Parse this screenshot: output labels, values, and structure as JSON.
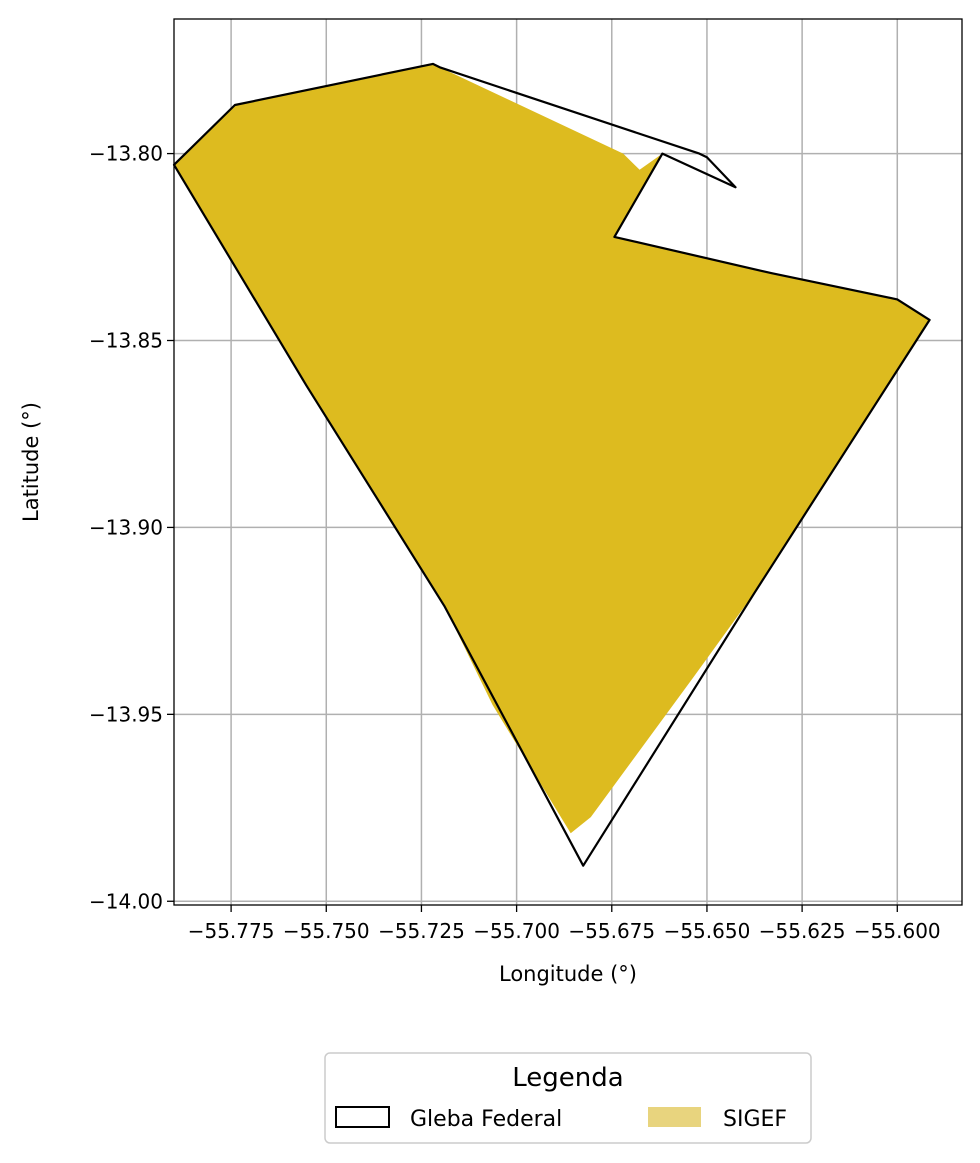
{
  "chart_data": {
    "type": "map",
    "xlabel": "Longitude (°)",
    "ylabel": "Latitude (°)",
    "xlim": [
      -55.79,
      -55.583
    ],
    "ylim": [
      -14.001,
      -13.764
    ],
    "xticks": [
      -55.775,
      -55.75,
      -55.725,
      -55.7,
      -55.675,
      -55.65,
      -55.625,
      -55.6
    ],
    "xtick_labels": [
      "−55.775",
      "−55.750",
      "−55.725",
      "−55.700",
      "−55.675",
      "−55.650",
      "−55.625",
      "−55.600"
    ],
    "yticks": [
      -13.8,
      -13.85,
      -13.9,
      -13.95,
      -14.0
    ],
    "ytick_labels": [
      "−13.80",
      "−13.85",
      "−13.90",
      "−13.95",
      "−14.00"
    ],
    "grid": true,
    "legend": {
      "title": "Legenda",
      "placement": "bottom-center",
      "entries": [
        "Gleba Federal",
        "SIGEF"
      ]
    },
    "series": [
      {
        "name": "SIGEF",
        "kind": "polygon",
        "color": "#DDBB1F",
        "legend_color": "#E8D47E",
        "coordinates": [
          [
            -55.79,
            -13.803
          ],
          [
            -55.774,
            -13.787
          ],
          [
            -55.722,
            -13.776
          ],
          [
            -55.72,
            -13.777
          ],
          [
            -55.672,
            -13.8
          ],
          [
            -55.667,
            -13.805
          ],
          [
            -55.67,
            -13.806
          ],
          [
            -55.6617,
            -13.8
          ],
          [
            -55.6743,
            -13.8223
          ],
          [
            -55.633,
            -13.832
          ],
          [
            -55.6,
            -13.839
          ],
          [
            -55.5915,
            -13.8445
          ],
          [
            -55.6375,
            -13.9175
          ],
          [
            -55.6535,
            -13.94
          ],
          [
            -55.6805,
            -13.9775
          ],
          [
            -55.6858,
            -13.9818
          ],
          [
            -55.7063,
            -13.9475
          ],
          [
            -55.719,
            -13.921
          ],
          [
            -55.7552,
            -13.8621
          ]
        ]
      },
      {
        "name": "Gleba Federal",
        "kind": "polygon-outline",
        "color": "#000000",
        "coordinates": [
          [
            -55.79,
            -13.803
          ],
          [
            -55.774,
            -13.787
          ],
          [
            -55.722,
            -13.776
          ],
          [
            -55.72,
            -13.777
          ],
          [
            -55.652,
            -13.8
          ],
          [
            -55.65,
            -13.801
          ],
          [
            -55.6425,
            -13.809
          ],
          [
            -55.6617,
            -13.8
          ],
          [
            -55.6743,
            -13.8223
          ],
          [
            -55.633,
            -13.832
          ],
          [
            -55.6,
            -13.839
          ],
          [
            -55.5915,
            -13.8445
          ],
          [
            -55.6375,
            -13.9175
          ],
          [
            -55.6825,
            -13.9905
          ],
          [
            -55.719,
            -13.921
          ],
          [
            -55.7552,
            -13.8621
          ]
        ]
      }
    ]
  }
}
